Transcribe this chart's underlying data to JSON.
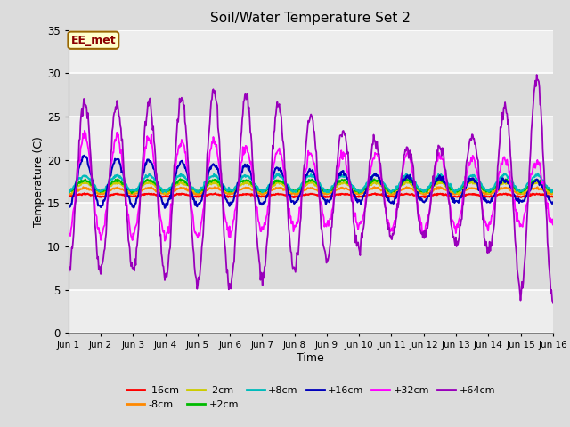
{
  "title": "Soil/Water Temperature Set 2",
  "xlabel": "Time",
  "ylabel": "Temperature (C)",
  "ylim": [
    0,
    35
  ],
  "xlim": [
    0,
    15
  ],
  "yticks": [
    0,
    5,
    10,
    15,
    20,
    25,
    30,
    35
  ],
  "xtick_labels": [
    "Jun 1",
    "Jun 2",
    "Jun 3",
    "Jun 4",
    "Jun 5",
    "Jun 6",
    "Jun 7",
    "Jun 8",
    "Jun 9",
    "Jun 10",
    "Jun 11",
    "Jun 12",
    "Jun 13",
    "Jun 14",
    "Jun 15",
    "Jun 16"
  ],
  "annotation_text": "EE_met",
  "annotation_color": "#8B0000",
  "annotation_bg": "#FFFFCC",
  "bg_color": "#DCDCDC",
  "series_colors": {
    "-16cm": "#FF0000",
    "-8cm": "#FF8800",
    "-2cm": "#CCCC00",
    "+2cm": "#00BB00",
    "+8cm": "#00BBBB",
    "+16cm": "#0000BB",
    "+32cm": "#FF00FF",
    "+64cm": "#9900BB"
  }
}
